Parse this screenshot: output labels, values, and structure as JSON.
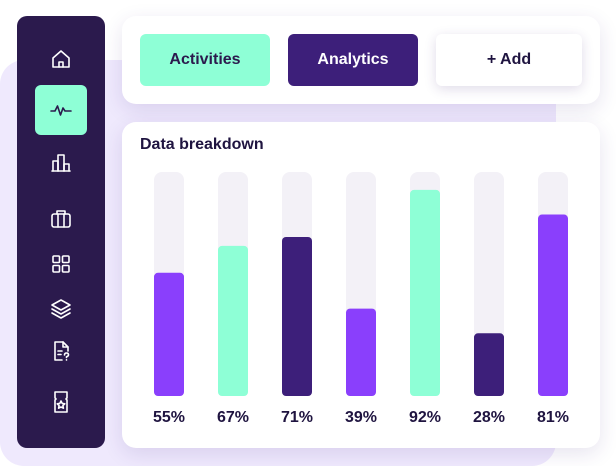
{
  "nav": {
    "items": [
      {
        "icon": "home-icon",
        "active": false
      },
      {
        "icon": "activity-pulse-icon",
        "active": true
      },
      {
        "icon": "buildings-icon",
        "active": false
      },
      {
        "icon": "briefcase-icon",
        "active": false
      },
      {
        "icon": "grid-icon",
        "active": false
      },
      {
        "icon": "layers-icon",
        "active": false
      },
      {
        "icon": "document-question-icon",
        "active": false
      },
      {
        "icon": "ticket-star-icon",
        "active": false
      }
    ]
  },
  "tabs": {
    "activities_label": "Activities",
    "analytics_label": "Analytics",
    "add_label": "+ Add"
  },
  "colors": {
    "sidebar": "#2b1a4d",
    "mint": "#8effd6",
    "purple": "#8a3ffc",
    "dark_purple": "#3d1f7a",
    "track": "#f3f1f7",
    "backdrop": "#efe9fd"
  },
  "chart_data": {
    "type": "bar",
    "title": "Data breakdown",
    "values": [
      55,
      67,
      71,
      39,
      92,
      28,
      81
    ],
    "labels": [
      "55%",
      "67%",
      "71%",
      "39%",
      "92%",
      "28%",
      "81%"
    ],
    "ylim": [
      0,
      100
    ],
    "bar_colors": [
      "#8a3ffc",
      "#8effd6",
      "#3d1f7a",
      "#8a3ffc",
      "#8effd6",
      "#3d1f7a",
      "#8a3ffc"
    ]
  }
}
